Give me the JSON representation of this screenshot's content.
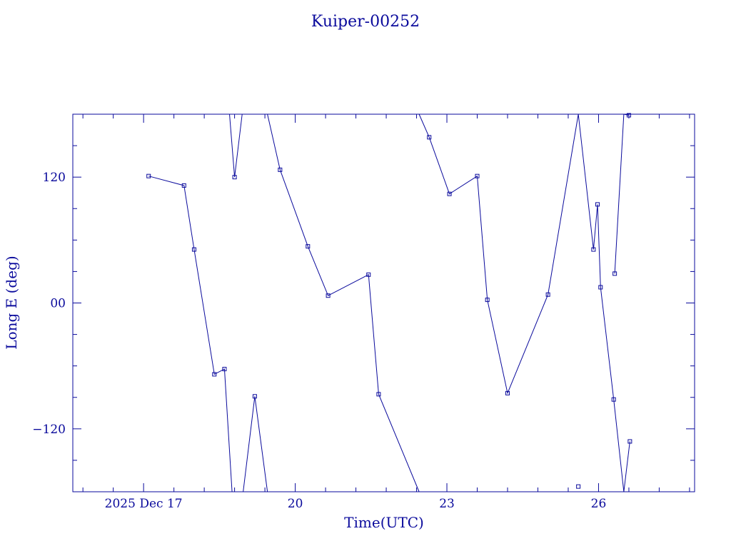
{
  "chart_data": {
    "type": "line",
    "title": "Kuiper-00252",
    "xlabel": "Time(UTC)",
    "ylabel": "Long E (deg)",
    "x_tick_labels": [
      {
        "x": 17.0,
        "label": "2025 Dec 17"
      },
      {
        "x": 20.0,
        "label": "20"
      },
      {
        "x": 23.0,
        "label": "23"
      },
      {
        "x": 26.0,
        "label": "26"
      }
    ],
    "y_tick_labels": [
      {
        "y": 120,
        "label": "120"
      },
      {
        "y": 0,
        "label": "00"
      },
      {
        "y": -120,
        "label": "−120"
      }
    ],
    "xlim": [
      15.6,
      27.9
    ],
    "ylim": [
      -180,
      180
    ],
    "x_minor_step": 0.6,
    "y_minor_step": 30,
    "grid": false,
    "color": "#0a0a9c",
    "series": [
      {
        "points": [
          [
            17.1,
            121
          ],
          [
            17.8,
            112
          ],
          [
            18.0,
            51
          ],
          [
            18.4,
            -68
          ],
          [
            18.6,
            -63
          ],
          [
            18.75,
            -180
          ],
          null,
          [
            18.97,
            -180
          ],
          [
            19.2,
            -89
          ],
          [
            19.45,
            -180
          ],
          null,
          [
            18.7,
            180
          ],
          [
            18.8,
            120
          ],
          [
            18.95,
            180
          ],
          null,
          [
            19.45,
            180
          ],
          [
            19.7,
            127
          ],
          [
            20.25,
            54
          ],
          [
            20.65,
            7
          ],
          [
            21.45,
            27
          ],
          [
            21.65,
            -87
          ],
          [
            22.45,
            -180
          ],
          null,
          [
            22.45,
            180
          ],
          [
            22.65,
            158
          ],
          [
            23.05,
            104
          ],
          [
            23.6,
            121
          ],
          [
            23.8,
            3
          ],
          [
            24.2,
            -86
          ],
          [
            25.0,
            8
          ],
          [
            25.6,
            180
          ],
          null,
          [
            25.6,
            -175
          ],
          null,
          [
            25.6,
            180
          ],
          [
            25.9,
            51
          ],
          [
            25.98,
            94
          ],
          [
            26.04,
            15
          ],
          [
            26.3,
            -92
          ],
          [
            26.5,
            -180
          ],
          null,
          [
            26.5,
            180
          ],
          [
            26.6,
            179
          ],
          null,
          [
            26.32,
            28
          ],
          [
            26.5,
            180
          ],
          null,
          [
            26.5,
            -180
          ],
          [
            26.62,
            -132
          ]
        ]
      }
    ]
  }
}
